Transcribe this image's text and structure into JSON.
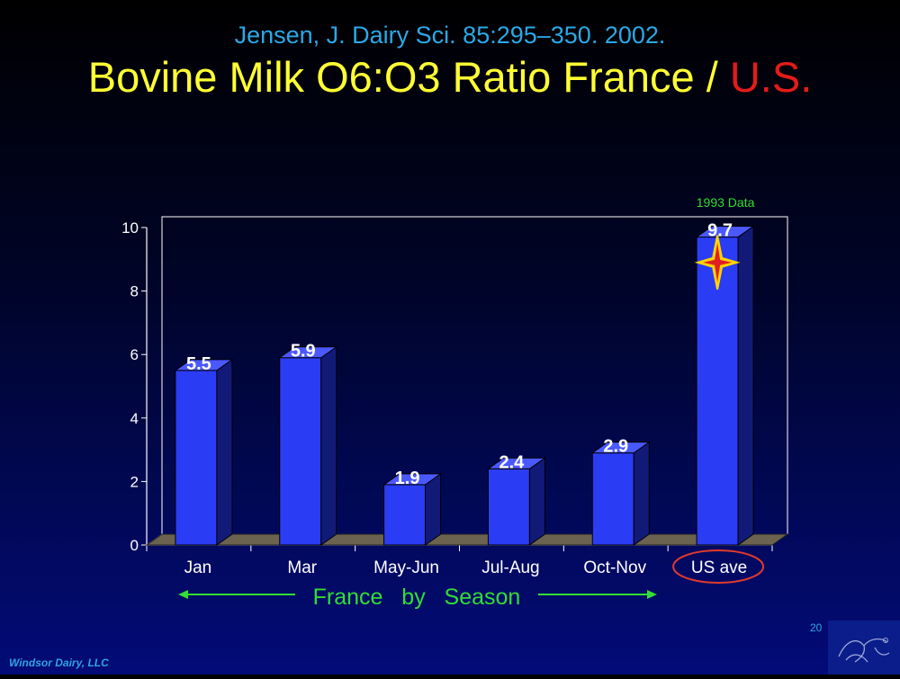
{
  "header": {
    "citation": "Jensen, J. Dairy Sci. 85:295–350. 2002.",
    "title_main": "Bovine Milk O6:O3 Ratio France / ",
    "title_highlight": "U.S."
  },
  "chart_data": {
    "type": "bar",
    "categories": [
      "Jan",
      "Mar",
      "May-Jun",
      "Jul-Aug",
      "Oct-Nov",
      "US ave"
    ],
    "values": [
      5.5,
      5.9,
      1.9,
      2.4,
      2.9,
      9.7
    ],
    "data_labels": [
      "5.5",
      "5.9",
      "1.9",
      "2.4",
      "2.9",
      "9.7"
    ],
    "yticks": [
      "0",
      "2",
      "4",
      "6",
      "8",
      "10"
    ],
    "ylim": [
      0,
      10
    ],
    "grid": false,
    "bar_color": "#2b3cf5",
    "highlighted_category": "US ave",
    "highlight_color": "#e03a2c",
    "annotation": "1993 Data",
    "annotation_color": "#33dd33",
    "group_label": "France   by   Season",
    "group_label_color": "#33dd33"
  },
  "footer": {
    "company": "Windsor Dairy, LLC",
    "slide_number": "20"
  }
}
